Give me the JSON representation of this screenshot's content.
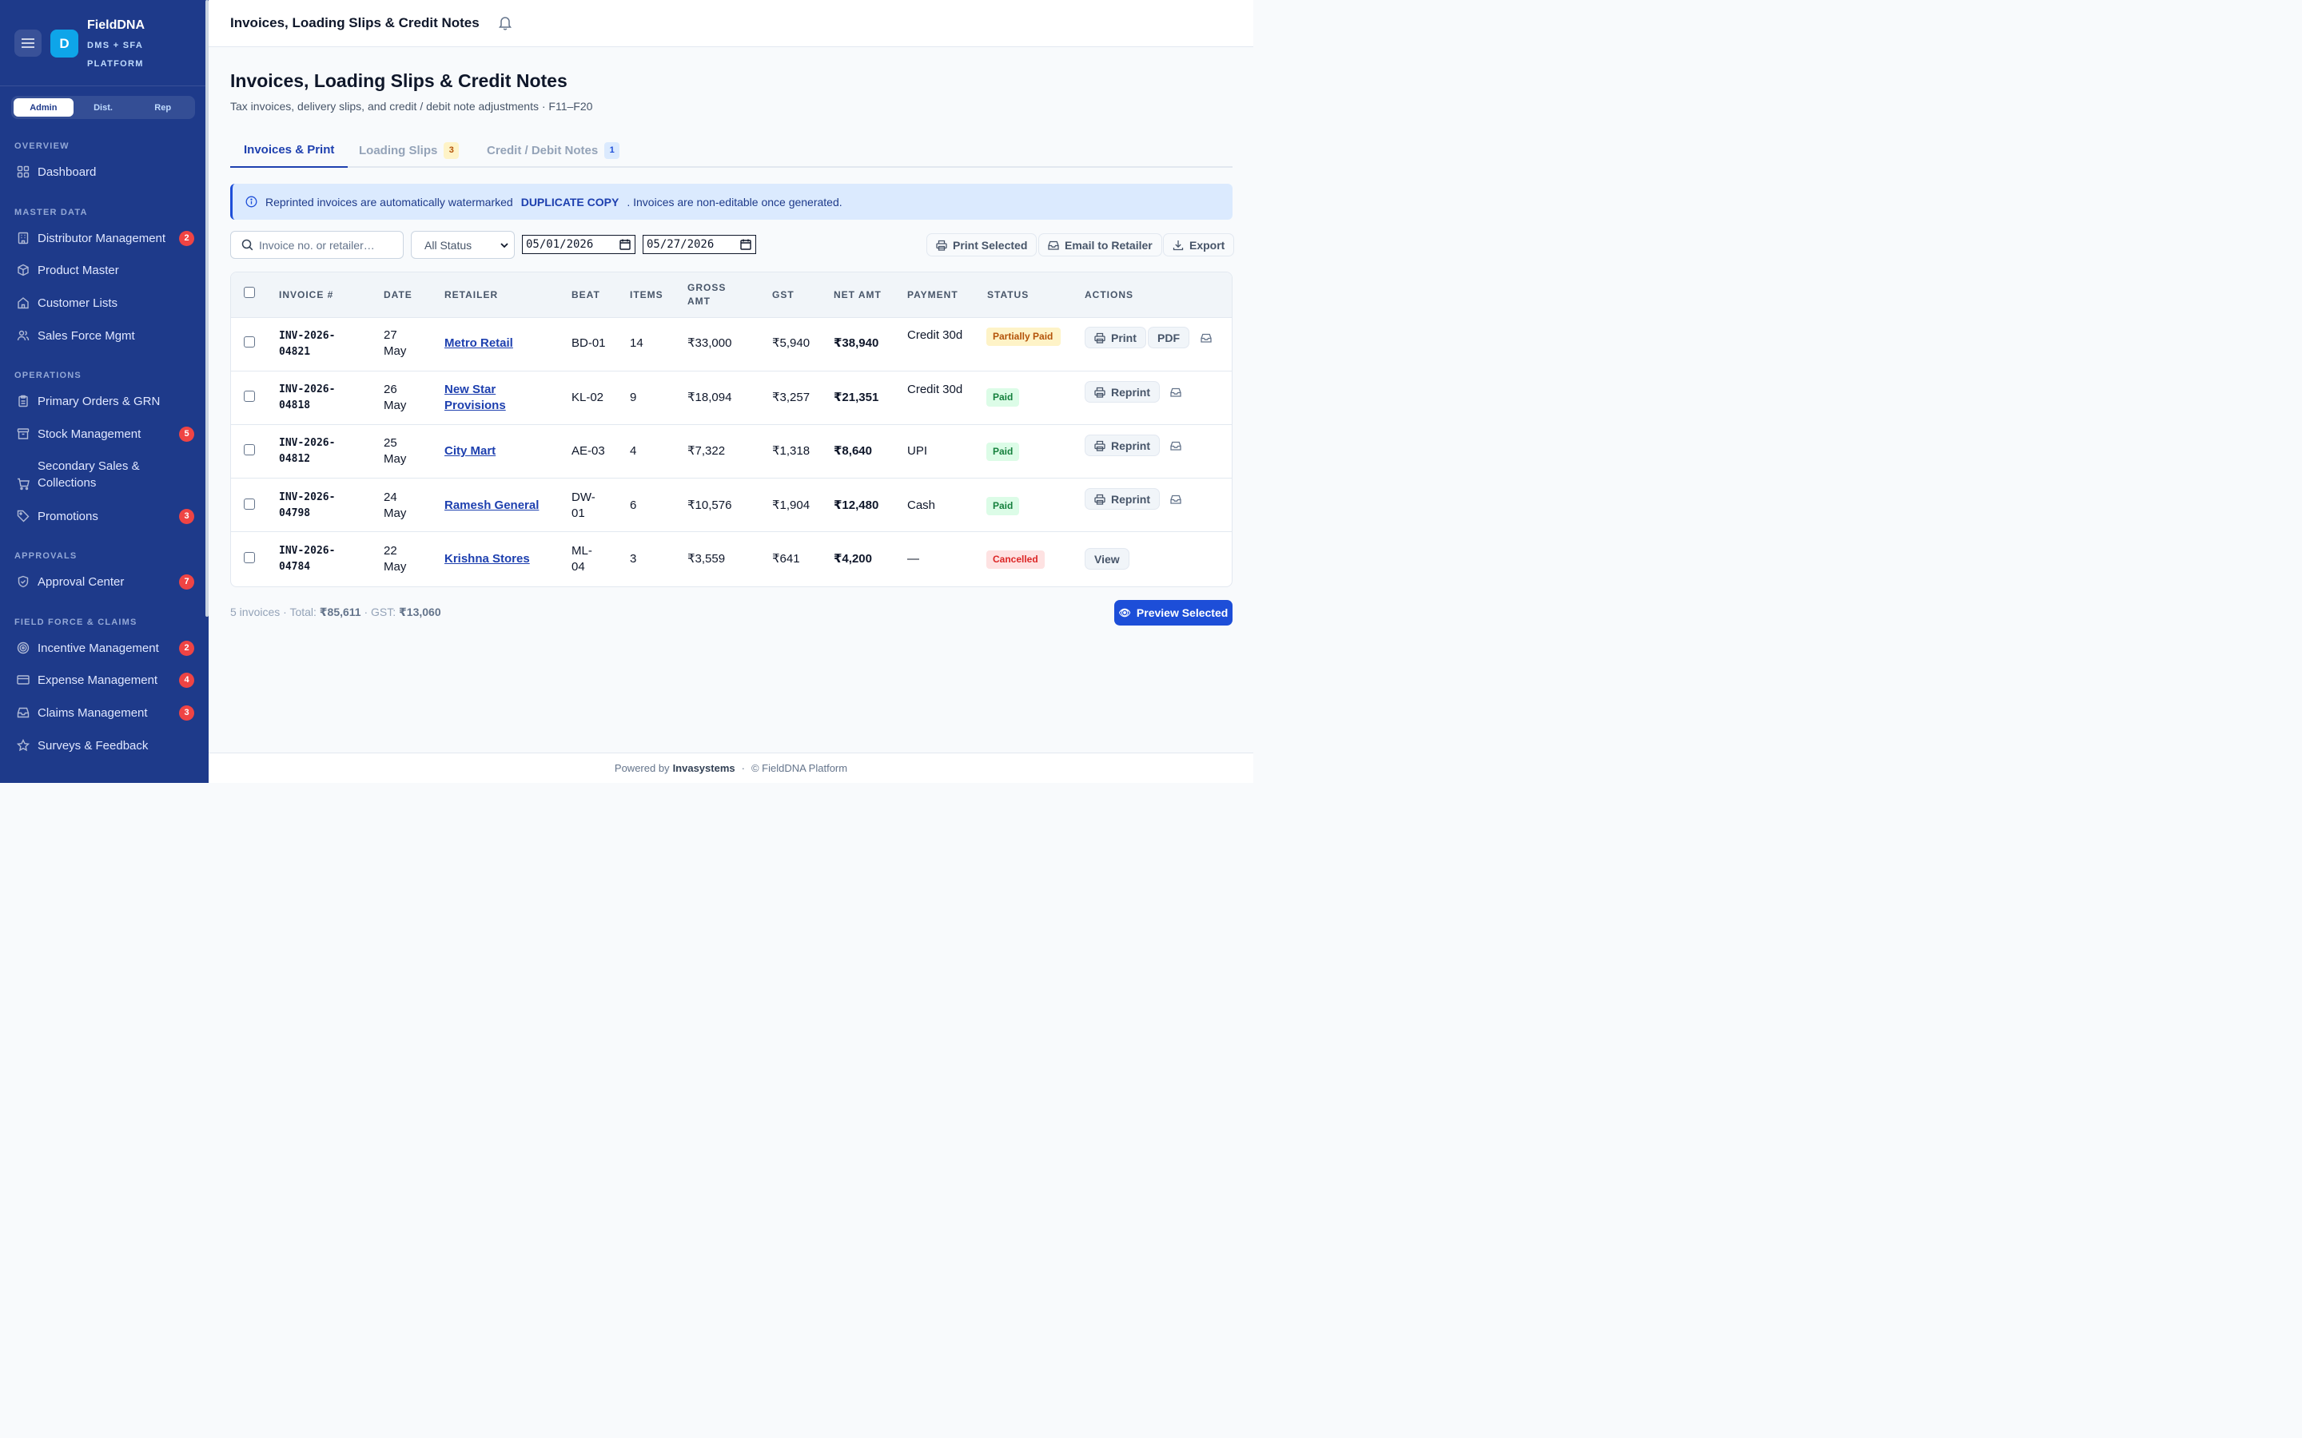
{
  "app": {
    "name": "FieldDNA",
    "subtitle": "DMS + SFA PLATFORM",
    "logo_letter": "D",
    "roles": [
      "Admin",
      "Dist.",
      "Rep"
    ],
    "active_role": "Admin"
  },
  "sidebar": {
    "sections": [
      {
        "title": "OVERVIEW",
        "items": [
          {
            "label": "Dashboard",
            "icon": "grid-icon"
          }
        ]
      },
      {
        "title": "MASTER DATA",
        "items": [
          {
            "label": "Distributor Management",
            "icon": "building-icon",
            "badge": "2"
          },
          {
            "label": "Product Master",
            "icon": "box-icon"
          },
          {
            "label": "Customer Lists",
            "icon": "home-icon"
          },
          {
            "label": "Sales Force Mgmt",
            "icon": "users-icon"
          }
        ]
      },
      {
        "title": "OPERATIONS",
        "items": [
          {
            "label": "Primary Orders & GRN",
            "icon": "clipboard-icon"
          },
          {
            "label": "Stock Management",
            "icon": "archive-icon",
            "badge": "5"
          },
          {
            "label": "Secondary Sales & Collections",
            "icon": "cart-icon"
          },
          {
            "label": "Promotions",
            "icon": "tag-icon",
            "badge": "3"
          }
        ]
      },
      {
        "title": "APPROVALS",
        "items": [
          {
            "label": "Approval Center",
            "icon": "shield-check-icon",
            "badge": "7"
          }
        ]
      },
      {
        "title": "FIELD FORCE & CLAIMS",
        "items": [
          {
            "label": "Incentive Management",
            "icon": "target-icon",
            "badge": "2"
          },
          {
            "label": "Expense Management",
            "icon": "credit-card-icon",
            "badge": "4"
          },
          {
            "label": "Claims Management",
            "icon": "inbox-icon",
            "badge": "3"
          },
          {
            "label": "Surveys & Feedback",
            "icon": "star-icon"
          }
        ]
      }
    ]
  },
  "header": {
    "title": "Invoices, Loading Slips & Credit Notes"
  },
  "page": {
    "title": "Invoices, Loading Slips & Credit Notes",
    "subtitle": "Tax invoices, delivery slips, and credit / debit note adjustments · F11–F20"
  },
  "tabs": [
    {
      "label": "Invoices & Print",
      "active": true
    },
    {
      "label": "Loading Slips",
      "count": "3"
    },
    {
      "label": "Credit / Debit Notes",
      "count": "1"
    }
  ],
  "alert": {
    "text_before": "Reprinted invoices are automatically watermarked",
    "highlight": "DUPLICATE COPY",
    "text_after": ". Invoices are non-editable once generated."
  },
  "filters": {
    "search_placeholder": "Invoice no. or retailer…",
    "status_value": "All Status",
    "date_from": "05/01/2026",
    "date_to": "05/27/2026"
  },
  "toolbar": {
    "print_selected": "Print Selected",
    "email_retailer": "Email to Retailer",
    "export": "Export"
  },
  "table": {
    "columns": [
      "INVOICE #",
      "DATE",
      "RETAILER",
      "BEAT",
      "ITEMS",
      "GROSS AMT",
      "GST",
      "NET AMT",
      "PAYMENT",
      "STATUS",
      "ACTIONS"
    ],
    "rows": [
      {
        "invoice": "INV-2026-04821",
        "date": "27 May",
        "retailer": "Metro Retail",
        "beat": "BD-01",
        "items": "14",
        "gross": "₹33,000",
        "gst": "₹5,940",
        "net": "₹38,940",
        "payment": "Credit 30d",
        "status": "Partially Paid",
        "status_type": "partial",
        "actions": [
          "Print",
          "PDF"
        ]
      },
      {
        "invoice": "INV-2026-04818",
        "date": "26 May",
        "retailer": "New Star Provisions",
        "beat": "KL-02",
        "items": "9",
        "gross": "₹18,094",
        "gst": "₹3,257",
        "net": "₹21,351",
        "payment": "Credit 30d",
        "status": "Paid",
        "status_type": "paid",
        "actions": [
          "Reprint"
        ]
      },
      {
        "invoice": "INV-2026-04812",
        "date": "25 May",
        "retailer": "City Mart",
        "beat": "AE-03",
        "items": "4",
        "gross": "₹7,322",
        "gst": "₹1,318",
        "net": "₹8,640",
        "payment": "UPI",
        "status": "Paid",
        "status_type": "paid",
        "actions": [
          "Reprint"
        ]
      },
      {
        "invoice": "INV-2026-04798",
        "date": "24 May",
        "retailer": "Ramesh General",
        "beat": "DW-01",
        "items": "6",
        "gross": "₹10,576",
        "gst": "₹1,904",
        "net": "₹12,480",
        "payment": "Cash",
        "status": "Paid",
        "status_type": "paid",
        "actions": [
          "Reprint"
        ]
      },
      {
        "invoice": "INV-2026-04784",
        "date": "22 May",
        "retailer": "Krishna Stores",
        "beat": "ML-04",
        "items": "3",
        "gross": "₹3,559",
        "gst": "₹641",
        "net": "₹4,200",
        "payment": "—",
        "status": "Cancelled",
        "status_type": "cancel",
        "actions": [
          "View"
        ]
      }
    ]
  },
  "summary": {
    "count_text": "5 invoices · Total:",
    "total": "₹85,611",
    "gst_text": "· GST:",
    "gst": "₹13,060"
  },
  "preview_button": "Preview Selected",
  "footer": {
    "powered_by": "Powered by",
    "company": "Invasystems",
    "copyright": "© FieldDNA Platform"
  },
  "colors": {
    "sidebar": "#1e3a8a",
    "accent": "#1d4ed8",
    "badge": "#ef4444"
  }
}
